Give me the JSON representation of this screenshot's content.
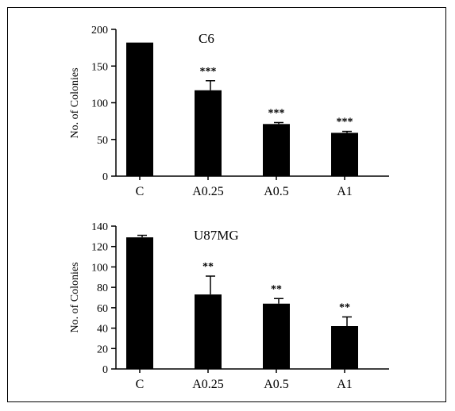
{
  "chart_data": [
    {
      "type": "bar",
      "title": "C6",
      "ylabel": "No. of Colonies",
      "categories": [
        "C",
        "A0.25",
        "A0.5",
        "A1"
      ],
      "values": [
        182,
        117,
        71,
        59
      ],
      "errors": [
        0,
        13,
        2,
        2
      ],
      "significance": [
        "",
        "***",
        "***",
        "***"
      ],
      "ylim": [
        0,
        200
      ],
      "yticks": [
        "0",
        "50",
        "100",
        "150",
        "200"
      ],
      "color": "#000000"
    },
    {
      "type": "bar",
      "title": "U87MG",
      "ylabel": "No. of Colonies",
      "categories": [
        "C",
        "A0.25",
        "A0.5",
        "A1"
      ],
      "values": [
        129,
        73,
        64,
        42
      ],
      "errors": [
        2,
        18,
        5,
        9
      ],
      "significance": [
        "",
        "**",
        "**",
        "**"
      ],
      "ylim": [
        0,
        140
      ],
      "yticks": [
        "0",
        "20",
        "40",
        "60",
        "80",
        "100",
        "120",
        "140"
      ],
      "color": "#000000"
    }
  ]
}
